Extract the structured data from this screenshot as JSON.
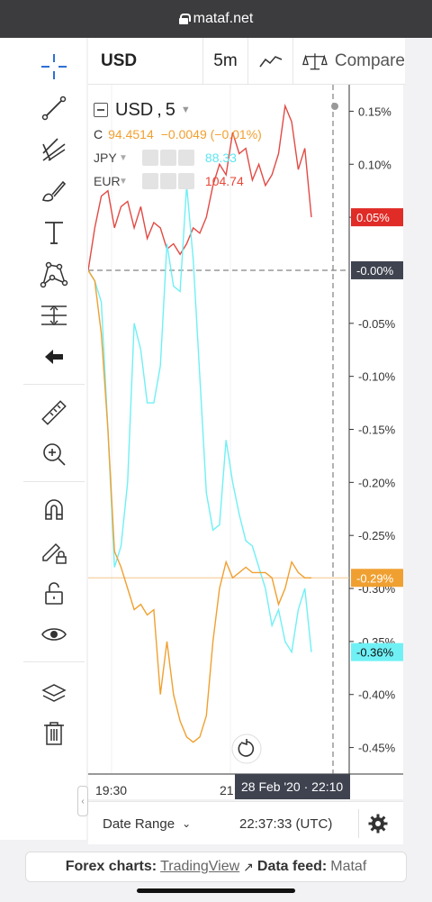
{
  "browser": {
    "url": "mataf.net"
  },
  "toolbar": {
    "tools": [
      "crosshair-icon",
      "trend-line-icon",
      "pitchfork-icon",
      "brush-icon",
      "text-icon",
      "pattern-icon",
      "prediction-icon",
      "back-arrow-icon",
      "ruler-icon",
      "zoom-in-icon",
      "magnet-icon",
      "lock-drawing-icon",
      "unlock-icon",
      "eye-icon",
      "layers-icon",
      "trash-icon"
    ]
  },
  "topbar": {
    "symbol": "USD",
    "interval": "5m",
    "compare_label": "Compare"
  },
  "legend": {
    "main_symbol": "USD",
    "main_interval": "5",
    "close_label": "C",
    "close_value": "94.4514",
    "change": "−0.0049 (−0.01%)",
    "series": [
      {
        "name": "JPY",
        "value": "88.33",
        "color": "#5ee6f0"
      },
      {
        "name": "EUR",
        "value": "104.74",
        "color": "#e8473a"
      }
    ]
  },
  "colors": {
    "usd": "#f0a030",
    "jpy": "#6ff0f5",
    "eur": "#e14a44",
    "zero_tag": "#3f4350"
  },
  "chart_data": {
    "type": "line",
    "ylim": [
      -0.475,
      0.175
    ],
    "y_ticks": [
      0.15,
      0.1,
      0.05,
      0.0,
      -0.05,
      -0.1,
      -0.15,
      -0.2,
      -0.25,
      -0.3,
      -0.35,
      -0.4,
      -0.45
    ],
    "y_tick_labels": [
      "0.15%",
      "0.10%",
      "0.05%",
      "-0.00%",
      "-0.05%",
      "-0.10%",
      "-0.15%",
      "-0.20%",
      "-0.25%",
      "-0.30%",
      "-0.35%",
      "-0.40%",
      "-0.45%"
    ],
    "x_tick_labels": [
      "19:30",
      "21:"
    ],
    "crosshair_label": "28 Feb '20 · 22:10",
    "series": [
      {
        "name": "EUR",
        "color": "#e14a44",
        "last_label": "0.05%",
        "x": [
          0,
          1,
          2,
          3,
          4,
          5,
          6,
          7,
          8,
          9,
          10,
          11,
          12,
          13,
          14,
          15,
          16,
          17,
          18,
          19,
          20,
          21,
          22,
          23,
          24,
          25,
          26,
          27,
          28,
          29,
          30,
          31,
          32,
          33,
          34
        ],
        "values": [
          0.0,
          0.04,
          0.07,
          0.075,
          0.04,
          0.06,
          0.065,
          0.04,
          0.06,
          0.03,
          0.045,
          0.04,
          0.02,
          0.025,
          0.015,
          0.025,
          0.04,
          0.035,
          0.05,
          0.08,
          0.1,
          0.09,
          0.13,
          0.11,
          0.115,
          0.085,
          0.1,
          0.08,
          0.09,
          0.11,
          0.155,
          0.14,
          0.095,
          0.115,
          0.05
        ]
      },
      {
        "name": "JPY",
        "color": "#6ff0f5",
        "last_label": "-0.36%",
        "x": [
          0,
          1,
          2,
          3,
          4,
          5,
          6,
          7,
          8,
          9,
          10,
          11,
          12,
          13,
          14,
          15,
          16,
          17,
          18,
          19,
          20,
          21,
          22,
          23,
          24,
          25,
          26,
          27,
          28,
          29,
          30,
          31,
          32,
          33,
          34
        ],
        "values": [
          0.0,
          -0.01,
          -0.03,
          -0.15,
          -0.28,
          -0.26,
          -0.2,
          -0.05,
          -0.075,
          -0.125,
          -0.125,
          -0.09,
          0.025,
          -0.015,
          -0.02,
          0.08,
          0.01,
          -0.1,
          -0.21,
          -0.245,
          -0.24,
          -0.16,
          -0.2,
          -0.23,
          -0.255,
          -0.26,
          -0.28,
          -0.3,
          -0.335,
          -0.32,
          -0.35,
          -0.36,
          -0.32,
          -0.3,
          -0.36
        ]
      },
      {
        "name": "USD",
        "color": "#f0a030",
        "last_label": "-0.29%",
        "x": [
          0,
          1,
          2,
          3,
          4,
          5,
          6,
          7,
          8,
          9,
          10,
          11,
          12,
          13,
          14,
          15,
          16,
          17,
          18,
          19,
          20,
          21,
          22,
          23,
          24,
          25,
          26,
          27,
          28,
          29,
          30,
          31,
          32,
          33,
          34
        ],
        "values": [
          0.0,
          -0.01,
          -0.06,
          -0.15,
          -0.265,
          -0.28,
          -0.3,
          -0.32,
          -0.315,
          -0.325,
          -0.32,
          -0.4,
          -0.35,
          -0.4,
          -0.425,
          -0.44,
          -0.445,
          -0.44,
          -0.42,
          -0.35,
          -0.3,
          -0.275,
          -0.29,
          -0.285,
          -0.28,
          -0.285,
          -0.285,
          -0.285,
          -0.29,
          -0.315,
          -0.3,
          -0.275,
          -0.285,
          -0.29,
          -0.29
        ]
      }
    ]
  },
  "bottombar": {
    "date_range": "Date Range",
    "time": "22:37:33 (UTC)"
  },
  "footer": {
    "prefix": "Forex charts:",
    "tv_link": "TradingView",
    "feed_label": "Data feed:",
    "feed_value": "Mataf"
  }
}
